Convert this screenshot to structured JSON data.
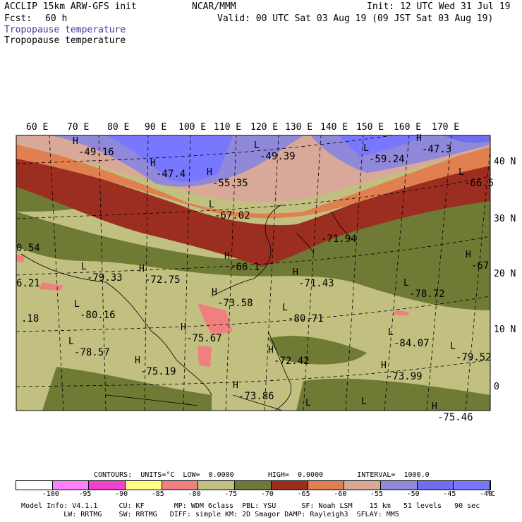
{
  "header": {
    "model": "ACCLIP 15km ARW-GFS init",
    "org": "NCAR/MMM",
    "init": "Init: 12 UTC Wed 31 Jul 19",
    "fcst_label": "Fcst:",
    "fcst_value": "60 h",
    "valid": "Valid: 00 UTC Sat 03 Aug 19 (09 JST Sat 03 Aug 19)",
    "field_line1": "Tropopause temperature",
    "field_line2": "Tropopause temperature"
  },
  "map": {
    "lon_labels": [
      "60 E",
      "70 E",
      "80 E",
      "90 E",
      "100 E",
      "110 E",
      "120 E",
      "130 E",
      "140 E",
      "150 E",
      "160 E",
      "170 E"
    ],
    "lat_labels": [
      "40 N",
      "30 N",
      "20 N",
      "10 N",
      "0"
    ],
    "markers": [
      {
        "sym": "H",
        "val": "-49.16"
      },
      {
        "sym": "H",
        "val": "-47.4"
      },
      {
        "sym": "H",
        "val": "-55.35"
      },
      {
        "sym": "L",
        "val": "-49.39"
      },
      {
        "sym": "L",
        "val": "-59.24"
      },
      {
        "sym": "H",
        "val": "-47.3"
      },
      {
        "sym": "L",
        "val": "-67.02"
      },
      {
        "sym": "L",
        "val": "-66.5"
      },
      {
        "sym": "",
        "val": "-71.94"
      },
      {
        "sym": "H",
        "val": "-66.1"
      },
      {
        "sym": "H",
        "val": "-67"
      },
      {
        "sym": "",
        "val": "0.54"
      },
      {
        "sym": "L",
        "val": "-79.33"
      },
      {
        "sym": "H",
        "val": "-72.75"
      },
      {
        "sym": "",
        "val": "6.21"
      },
      {
        "sym": "H",
        "val": "-71.43"
      },
      {
        "sym": "L",
        "val": "-78.72"
      },
      {
        "sym": "H",
        "val": "-73.58"
      },
      {
        "sym": "L",
        "val": "-80.16"
      },
      {
        "sym": "",
        "val": ".18"
      },
      {
        "sym": "L",
        "val": "-80.71"
      },
      {
        "sym": "L",
        "val": "-84.07"
      },
      {
        "sym": "H",
        "val": "-75.67"
      },
      {
        "sym": "L",
        "val": "-78.57"
      },
      {
        "sym": "L",
        "val": "-79.52"
      },
      {
        "sym": "H",
        "val": "-72.42"
      },
      {
        "sym": "H",
        "val": "-75.19"
      },
      {
        "sym": "H",
        "val": "-73.99"
      },
      {
        "sym": "H",
        "val": "-73.86"
      },
      {
        "sym": "L",
        "val": ""
      },
      {
        "sym": "L",
        "val": ""
      },
      {
        "sym": "H",
        "val": "-75.46"
      }
    ]
  },
  "legend": {
    "contours_line": "CONTOURS:  UNITS=°C  LOW=  0.0000        HIGH=  0.0000        INTERVAL=  1000.0",
    "colors": [
      "#ffffff",
      "#ff80ff",
      "#f040d0",
      "#ffff80",
      "#f08080",
      "#c2c080",
      "#6f7a35",
      "#9b2e20",
      "#e08050",
      "#d8a898",
      "#9088d8",
      "#6e6ef0",
      "#7878ff"
    ],
    "tick_labels": [
      "-100",
      "-95",
      "-90",
      "-85",
      "-80",
      "-75",
      "-70",
      "-65",
      "-60",
      "-55",
      "-50",
      "-45",
      "-40"
    ],
    "unit": "°C"
  },
  "footer": {
    "line1": "Model Info: V4.1.1     CU: KF       MP: WDM 6class  PBL: YSU      SF: Noah LSM    15 km   51 levels   90 sec",
    "line2": "          LW: RRTMG    SW: RRTMG   DIFF: simple KM: 2D Smagor DAMP: Rayleigh3  SFLAY: MM5"
  }
}
